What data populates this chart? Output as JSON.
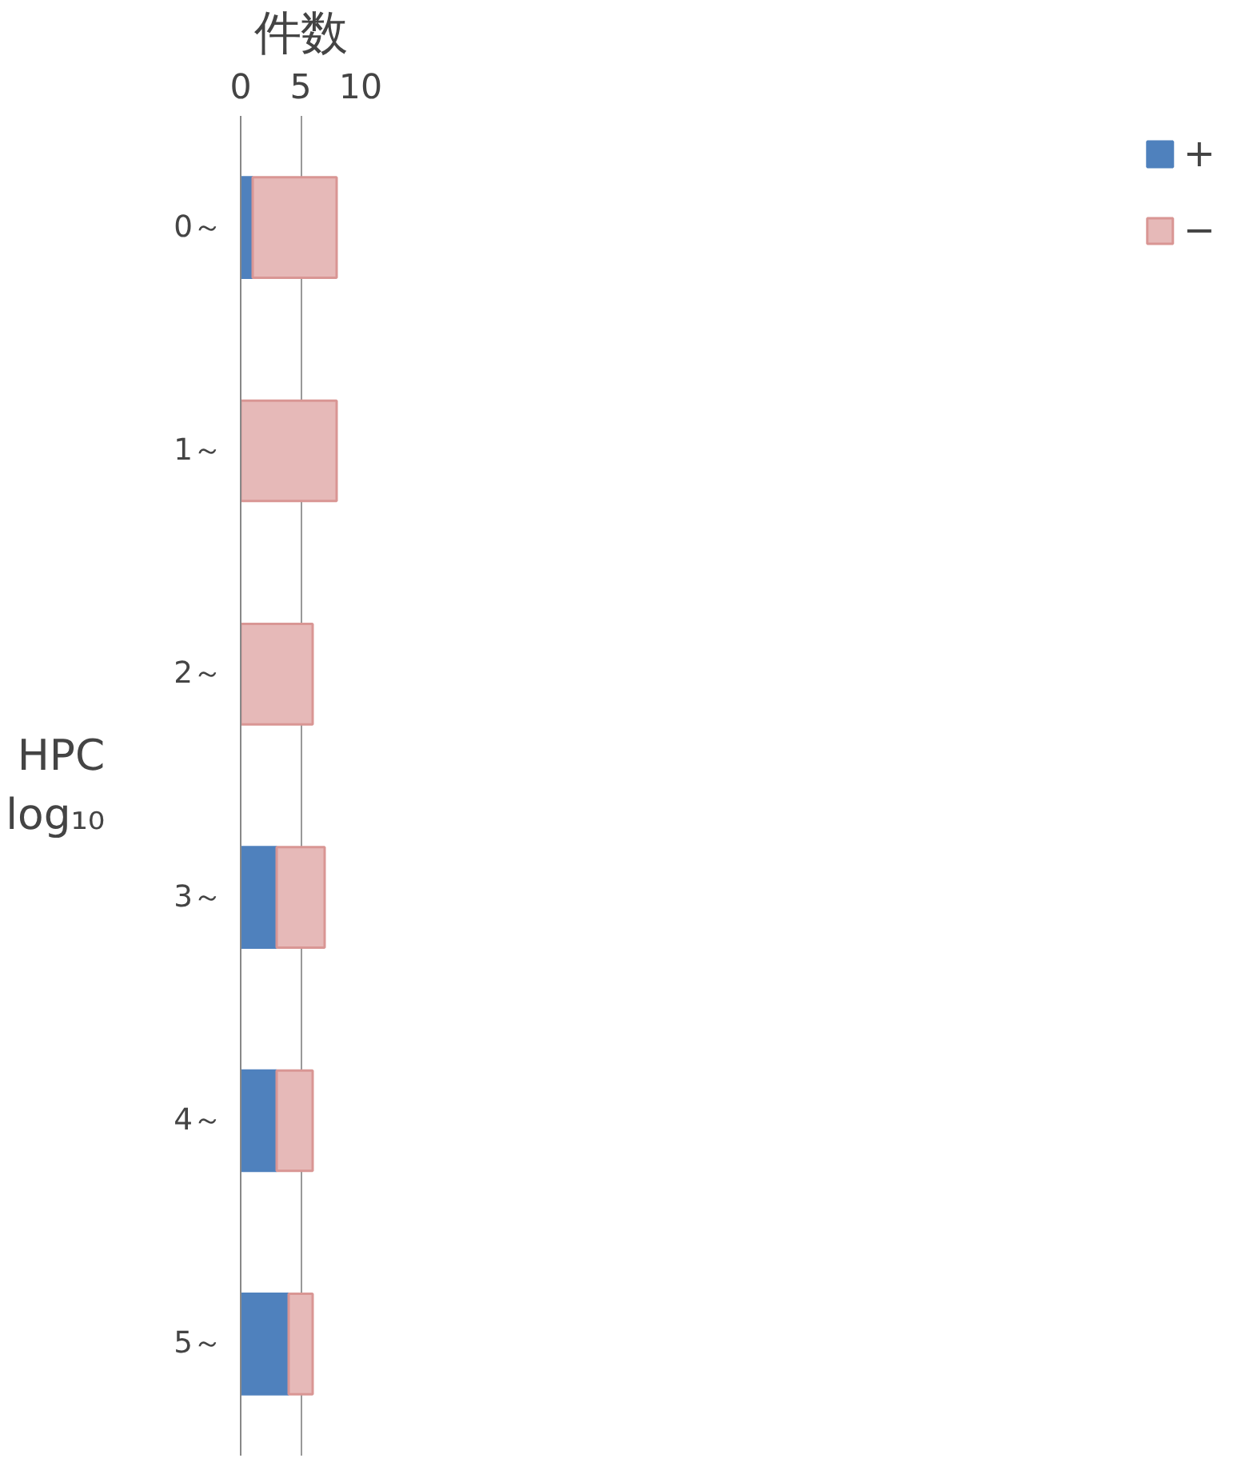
{
  "chart_data": {
    "type": "bar",
    "orientation": "horizontal",
    "stacked": true,
    "xlabel": "件数",
    "ylabel": "HPC\nlog₁₀",
    "categories": [
      "0～",
      "1～",
      "2～",
      "3～",
      "4～",
      "5～"
    ],
    "series": [
      {
        "name": "+",
        "color": "#4f81bd",
        "values": [
          1,
          0,
          0,
          3,
          3,
          4
        ]
      },
      {
        "name": "−",
        "color": "#e6b9b8",
        "values": [
          7,
          8,
          6,
          4,
          3,
          2
        ]
      }
    ],
    "xlim": [
      0,
      10
    ],
    "xticks": [
      0,
      5,
      10
    ],
    "grid": "x",
    "legend": "right"
  }
}
